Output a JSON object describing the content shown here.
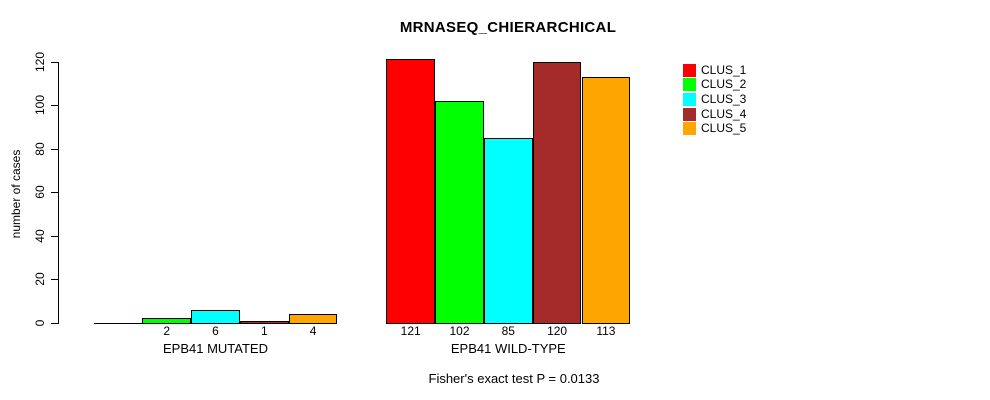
{
  "title": "MRNASEQ_CHIERARCHICAL",
  "footer_note": "Fisher's exact test P = 0.0133",
  "chart_data": {
    "type": "bar",
    "title": "MRNASEQ_CHIERARCHICAL",
    "xlabel": "",
    "ylabel": "number of cases",
    "ylim": [
      0,
      120
    ],
    "yticks": [
      0,
      20,
      40,
      60,
      80,
      100,
      120
    ],
    "grid": false,
    "legend_position": "right",
    "series": [
      {
        "name": "CLUS_1",
        "color": "#FF0000",
        "values": [
          0,
          121
        ]
      },
      {
        "name": "CLUS_2",
        "color": "#00FF00",
        "values": [
          2,
          102
        ]
      },
      {
        "name": "CLUS_3",
        "color": "#00FFFF",
        "values": [
          6,
          85
        ]
      },
      {
        "name": "CLUS_4",
        "color": "#A52A2A",
        "values": [
          1,
          120
        ]
      },
      {
        "name": "CLUS_5",
        "color": "#FFA500",
        "values": [
          4,
          113
        ]
      }
    ],
    "categories": [
      "EPB41 MUTATED",
      "EPB41 WILD-TYPE"
    ],
    "groups": [
      {
        "label": "EPB41 MUTATED",
        "values": [
          0,
          2,
          6,
          1,
          4
        ],
        "bar_labels": [
          "",
          "2",
          "6",
          "1",
          "4"
        ]
      },
      {
        "label": "EPB41 WILD-TYPE",
        "values": [
          121,
          102,
          85,
          120,
          113
        ],
        "bar_labels": [
          "121",
          "102",
          "85",
          "120",
          "113"
        ]
      }
    ],
    "annotation": "Fisher's exact test P = 0.0133",
    "bar_border_color": "#000000"
  }
}
